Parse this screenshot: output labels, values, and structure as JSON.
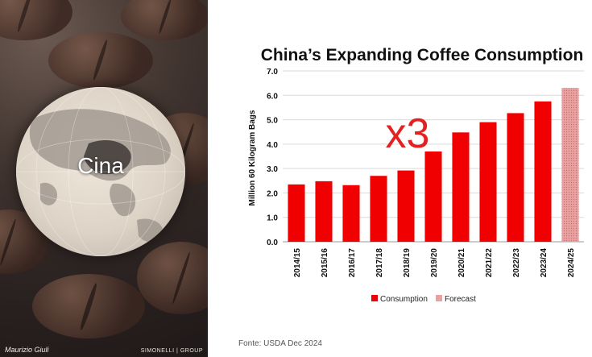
{
  "left_panel": {
    "globe_label": "Cina",
    "author": "Maurizio Giuli",
    "brand": "SIMONELLI | GROUP"
  },
  "annotation": "x3",
  "source": "Fonte: USDA Dec 2024",
  "colors": {
    "consumption": "#f00000",
    "forecast": "#e8a0a0",
    "annotation": "#e32121",
    "grid": "#d9d9d9"
  },
  "chart_data": {
    "type": "bar",
    "title": "China’s Expanding Coffee Consumption",
    "ylabel": "Million 60 Kilogram Bags",
    "xlabel": "",
    "ylim": [
      0,
      7
    ],
    "yticks": [
      "0.0",
      "1.0",
      "2.0",
      "3.0",
      "4.0",
      "5.0",
      "6.0",
      "7.0"
    ],
    "categories": [
      "2014/15",
      "2015/16",
      "2016/17",
      "2017/18",
      "2018/19",
      "2019/20",
      "2020/21",
      "2021/22",
      "2022/23",
      "2023/24",
      "2024/25"
    ],
    "series": [
      {
        "name": "Consumption",
        "values": [
          2.35,
          2.48,
          2.32,
          2.7,
          2.92,
          3.7,
          4.48,
          4.9,
          5.27,
          5.75,
          null
        ]
      },
      {
        "name": "Forecast",
        "values": [
          null,
          null,
          null,
          null,
          null,
          null,
          null,
          null,
          null,
          null,
          6.3
        ]
      }
    ],
    "legend": [
      "Consumption",
      "Forecast"
    ],
    "legend_position": "bottom",
    "grid": true
  }
}
